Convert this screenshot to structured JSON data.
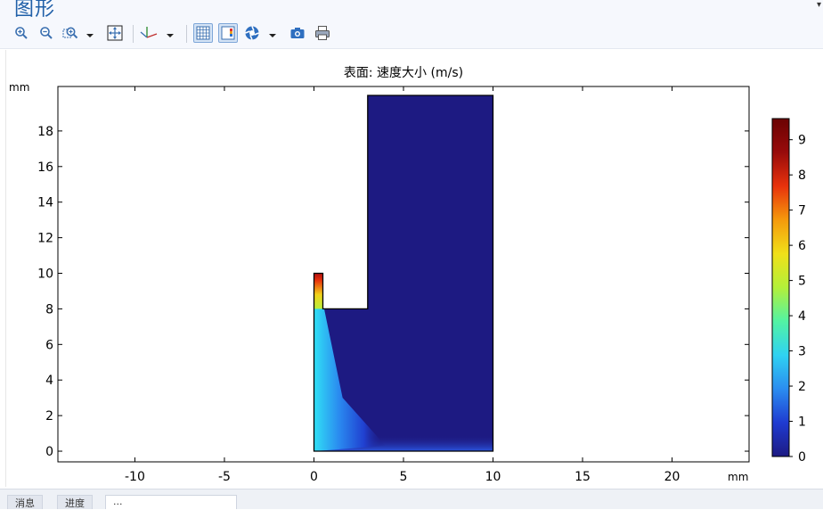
{
  "window": {
    "title": "图形"
  },
  "toolbar": {
    "items": [
      {
        "name": "zoom-in",
        "icon": "zoom-in-icon"
      },
      {
        "name": "zoom-out",
        "icon": "zoom-out-icon"
      },
      {
        "name": "zoom-box",
        "icon": "zoom-box-icon",
        "dropdown": true
      },
      {
        "name": "zoom-extents",
        "icon": "zoom-extents-icon"
      },
      {
        "name": "axis-orientation",
        "icon": "axis-icon",
        "dropdown": true
      },
      {
        "name": "show-grid",
        "icon": "grid-icon",
        "pressed": true
      },
      {
        "name": "show-legend",
        "icon": "legend-icon",
        "pressed": true
      },
      {
        "name": "scene-light",
        "icon": "scene-light-icon",
        "dropdown": true
      },
      {
        "name": "image-snapshot",
        "icon": "camera-icon"
      },
      {
        "name": "print",
        "icon": "printer-icon"
      }
    ]
  },
  "chart_data": {
    "type": "heatmap",
    "title": "表面: 速度大小 (m/s)",
    "xunit": "mm",
    "yunit": "mm",
    "xlim": [
      -14.3,
      24.3
    ],
    "ylim": [
      -0.6,
      20.5
    ],
    "xticks": [
      -10,
      -5,
      0,
      5,
      10,
      15,
      20
    ],
    "yticks": [
      0,
      2,
      4,
      6,
      8,
      10,
      12,
      14,
      16,
      18
    ],
    "domain_outline": [
      [
        0,
        0
      ],
      [
        10,
        0
      ],
      [
        10,
        20
      ],
      [
        3,
        20
      ],
      [
        3,
        8
      ],
      [
        0.5,
        8
      ],
      [
        0.5,
        10
      ],
      [
        0,
        10
      ],
      [
        0,
        0
      ]
    ],
    "inlet_channel": {
      "x_range": [
        0,
        0.5
      ],
      "y_range": [
        8,
        10
      ],
      "max_value": 9.6
    },
    "colorbar": {
      "ticks": [
        0,
        1,
        2,
        3,
        4,
        5,
        6,
        7,
        8,
        9
      ],
      "min": 0,
      "max": 9.6,
      "colormap": "rainbow",
      "colors": [
        "#1d1a82",
        "#1f3bd1",
        "#2b8df0",
        "#2fd2f2",
        "#52f3a4",
        "#b3f03a",
        "#f0e019",
        "#f59a0c",
        "#e8320c",
        "#980b0b",
        "#6b0303"
      ]
    },
    "grid": false,
    "legend": "right"
  },
  "bottom": {
    "tabs": [
      "消息",
      "进度",
      "..."
    ]
  }
}
